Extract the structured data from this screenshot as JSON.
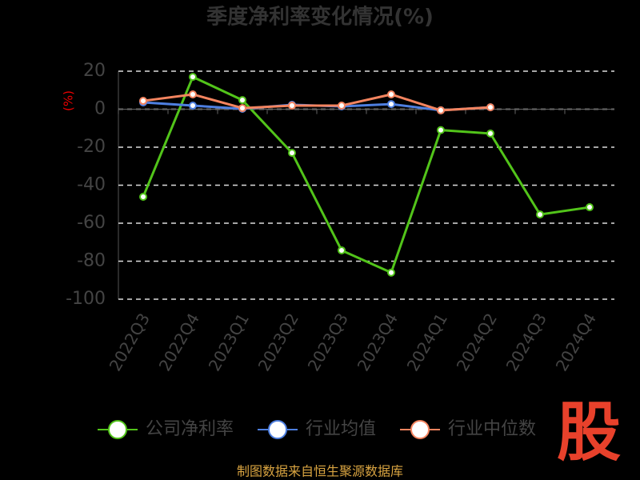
{
  "chart_data": {
    "type": "line",
    "title": "季度净利率变化情况(%)",
    "y_label": "(%)",
    "categories": [
      "2022Q3",
      "2022Q4",
      "2023Q1",
      "2023Q2",
      "2023Q3",
      "2023Q4",
      "2024Q1",
      "2024Q2",
      "2024Q3",
      "2024Q4"
    ],
    "series": [
      {
        "name": "公司净利率",
        "color": "#52c41a",
        "values": [
          -46.1,
          17,
          4.8,
          -23,
          -74.3,
          -86,
          -11,
          -12.8,
          -55.4,
          -51.6
        ]
      },
      {
        "name": "行业均值",
        "color": "#4e7fe0",
        "values": [
          3.6,
          1.9,
          0.2,
          2.3,
          1.5,
          2.7,
          -0.6,
          1,
          null,
          null
        ]
      },
      {
        "name": "行业中位数",
        "color": "#f4845f",
        "values": [
          4.4,
          7.8,
          0.6,
          1.9,
          1.9,
          7.8,
          -0.6,
          1,
          null,
          null
        ]
      }
    ],
    "ylim": [
      -100,
      20
    ],
    "yticks": [
      -100,
      -80,
      -60,
      -40,
      -20,
      0,
      20
    ],
    "grid": true,
    "source": "制图数据来自恒生聚源数据库",
    "logo": "股"
  }
}
